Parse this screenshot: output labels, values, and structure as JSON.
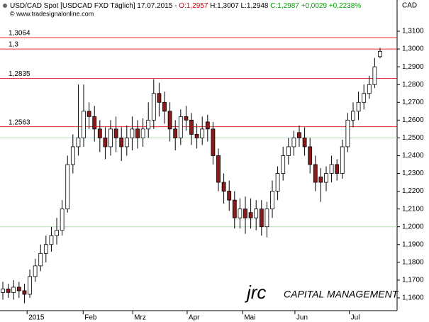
{
  "chart_data": {
    "type": "candlestick",
    "title_parts": [
      {
        "text": "USD/CAD Spot [USDCAD FXD  Täglich] 17.07.2015 - ",
        "color": "#000000"
      },
      {
        "text": "O:1,2957",
        "color": "#d00000"
      },
      {
        "text": " H:1,3007 L:1,2948 ",
        "color": "#000000"
      },
      {
        "text": "C:1,2987 +0,0029 +0,2238%",
        "color": "#00a000"
      }
    ],
    "source": "© www.tradesignalonline.com",
    "y_axis_label": "CAD",
    "logo": {
      "mark": "jrc",
      "text": "CAPITAL MANAGEMENT",
      "color": "#c8102e"
    },
    "open": [
      1.163,
      1.165,
      1.163,
      1.166,
      1.164,
      1.162,
      1.172,
      1.178,
      1.185,
      1.19,
      1.195,
      1.198,
      1.21,
      1.235,
      1.245,
      1.25,
      1.265,
      1.262,
      1.255,
      1.25,
      1.245,
      1.255,
      1.25,
      1.245,
      1.25,
      1.255,
      1.25,
      1.255,
      1.26,
      1.275,
      1.27,
      1.265,
      1.255,
      1.25,
      1.262,
      1.26,
      1.252,
      1.25,
      1.259,
      1.255,
      1.24,
      1.225,
      1.22,
      1.215,
      1.205,
      1.21,
      1.208,
      1.205,
      1.21,
      1.2,
      1.21,
      1.22,
      1.23,
      1.24,
      1.245,
      1.253,
      1.25,
      1.245,
      1.235,
      1.228,
      1.225,
      1.23,
      1.235,
      1.23,
      1.245,
      1.26,
      1.265,
      1.27,
      1.275,
      1.28,
      1.2957
    ],
    "high": [
      1.169,
      1.168,
      1.17,
      1.169,
      1.168,
      1.176,
      1.182,
      1.19,
      1.195,
      1.2,
      1.205,
      1.215,
      1.24,
      1.252,
      1.28,
      1.28,
      1.27,
      1.268,
      1.26,
      1.256,
      1.26,
      1.262,
      1.256,
      1.257,
      1.262,
      1.26,
      1.261,
      1.27,
      1.283,
      1.281,
      1.276,
      1.27,
      1.26,
      1.266,
      1.268,
      1.264,
      1.258,
      1.262,
      1.263,
      1.259,
      1.244,
      1.23,
      1.226,
      1.22,
      1.216,
      1.217,
      1.216,
      1.215,
      1.215,
      1.214,
      1.226,
      1.234,
      1.245,
      1.25,
      1.254,
      1.257,
      1.256,
      1.25,
      1.24,
      1.233,
      1.234,
      1.24,
      1.238,
      1.249,
      1.264,
      1.27,
      1.276,
      1.28,
      1.285,
      1.295,
      1.3007
    ],
    "low": [
      1.159,
      1.16,
      1.159,
      1.16,
      1.157,
      1.16,
      1.169,
      1.175,
      1.18,
      1.186,
      1.19,
      1.195,
      1.208,
      1.23,
      1.24,
      1.245,
      1.255,
      1.248,
      1.242,
      1.238,
      1.24,
      1.242,
      1.237,
      1.24,
      1.243,
      1.244,
      1.245,
      1.25,
      1.255,
      1.262,
      1.258,
      1.248,
      1.243,
      1.246,
      1.254,
      1.246,
      1.244,
      1.246,
      1.248,
      1.235,
      1.22,
      1.213,
      1.209,
      1.199,
      1.199,
      1.196,
      1.199,
      1.198,
      1.195,
      1.194,
      1.205,
      1.215,
      1.226,
      1.235,
      1.24,
      1.245,
      1.24,
      1.23,
      1.22,
      1.214,
      1.22,
      1.225,
      1.226,
      1.227,
      1.242,
      1.256,
      1.26,
      1.266,
      1.272,
      1.278,
      1.2948
    ],
    "close": [
      1.165,
      1.163,
      1.166,
      1.164,
      1.162,
      1.172,
      1.178,
      1.185,
      1.19,
      1.195,
      1.198,
      1.21,
      1.235,
      1.245,
      1.25,
      1.265,
      1.262,
      1.255,
      1.25,
      1.245,
      1.255,
      1.25,
      1.245,
      1.25,
      1.255,
      1.25,
      1.255,
      1.26,
      1.275,
      1.27,
      1.265,
      1.255,
      1.25,
      1.262,
      1.26,
      1.252,
      1.25,
      1.255,
      1.255,
      1.24,
      1.225,
      1.22,
      1.215,
      1.205,
      1.21,
      1.205,
      1.205,
      1.21,
      1.2,
      1.21,
      1.22,
      1.23,
      1.24,
      1.245,
      1.25,
      1.25,
      1.245,
      1.235,
      1.225,
      1.225,
      1.23,
      1.235,
      1.23,
      1.245,
      1.26,
      1.265,
      1.27,
      1.275,
      1.28,
      1.29,
      1.2987
    ],
    "up_color": "#ffffff",
    "down_color": "#8b1a1a",
    "xlim": [
      -0.53,
      73.16
    ],
    "xticks": [
      {
        "value": 4.5,
        "label": "2015"
      },
      {
        "value": 14.9,
        "label": "Feb"
      },
      {
        "value": 24.1,
        "label": "Mrz"
      },
      {
        "value": 34.2,
        "label": "Apr"
      },
      {
        "value": 44.5,
        "label": "Mai"
      },
      {
        "value": 54.2,
        "label": "Jun"
      },
      {
        "value": 64.3,
        "label": "Jul"
      }
    ],
    "ylim": [
      1.1528,
      1.3164
    ],
    "yticks": [
      {
        "value": 1.16,
        "label": "1,1600"
      },
      {
        "value": 1.17,
        "label": "1,1700"
      },
      {
        "value": 1.18,
        "label": "1,1800"
      },
      {
        "value": 1.19,
        "label": "1,1900"
      },
      {
        "value": 1.2,
        "label": "1,2000"
      },
      {
        "value": 1.21,
        "label": "1,2100"
      },
      {
        "value": 1.22,
        "label": "1,2200"
      },
      {
        "value": 1.23,
        "label": "1,2300"
      },
      {
        "value": 1.24,
        "label": "1,2400"
      },
      {
        "value": 1.25,
        "label": "1,2500"
      },
      {
        "value": 1.26,
        "label": "1,2600"
      },
      {
        "value": 1.27,
        "label": "1,2700"
      },
      {
        "value": 1.28,
        "label": "1,2800"
      },
      {
        "value": 1.29,
        "label": "1,2900"
      },
      {
        "value": 1.3,
        "label": "1,3000"
      },
      {
        "value": 1.31,
        "label": "1,3100"
      }
    ],
    "levels": [
      {
        "value": 1.3064,
        "label": "1,3064"
      },
      {
        "value": 1.3,
        "label": "1,3"
      },
      {
        "value": 1.2835,
        "label": "1,2835"
      },
      {
        "value": 1.2563,
        "label": "1,2563"
      }
    ],
    "level_color": "#e03030",
    "reference_lines": [
      1.25,
      1.2
    ],
    "reference_color": "#b8dcb8"
  }
}
